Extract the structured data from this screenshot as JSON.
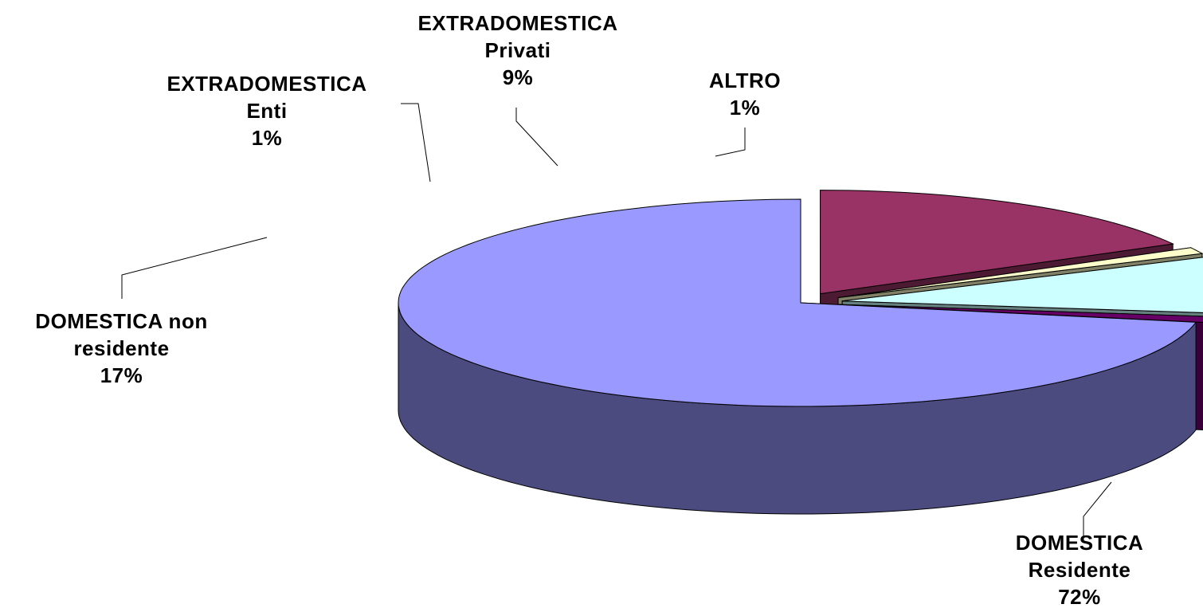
{
  "chart_data": {
    "type": "pie",
    "style": "3d-exploded",
    "slices": [
      {
        "name_lines": [
          "DOMESTICA",
          "Residente"
        ],
        "percent_label": "72%",
        "value": 72,
        "top_color": "#9999FF",
        "side_color": "#4B4B80"
      },
      {
        "name_lines": [
          "ALTRO"
        ],
        "percent_label": "1%",
        "value": 1,
        "top_color": "#660066",
        "side_color": "#3A003A"
      },
      {
        "name_lines": [
          "EXTRADOMESTICA",
          "Privati"
        ],
        "percent_label": "9%",
        "value": 9,
        "top_color": "#CCFFFF",
        "side_color": "#668080"
      },
      {
        "name_lines": [
          "EXTRADOMESTICA",
          "Enti"
        ],
        "percent_label": "1%",
        "value": 1,
        "top_color": "#FFFFCC",
        "side_color": "#808066"
      },
      {
        "name_lines": [
          "DOMESTICA non",
          "residente"
        ],
        "percent_label": "17%",
        "value": 17,
        "top_color": "#993366",
        "side_color": "#4D1A33"
      }
    ],
    "legend": "none",
    "title": ""
  }
}
